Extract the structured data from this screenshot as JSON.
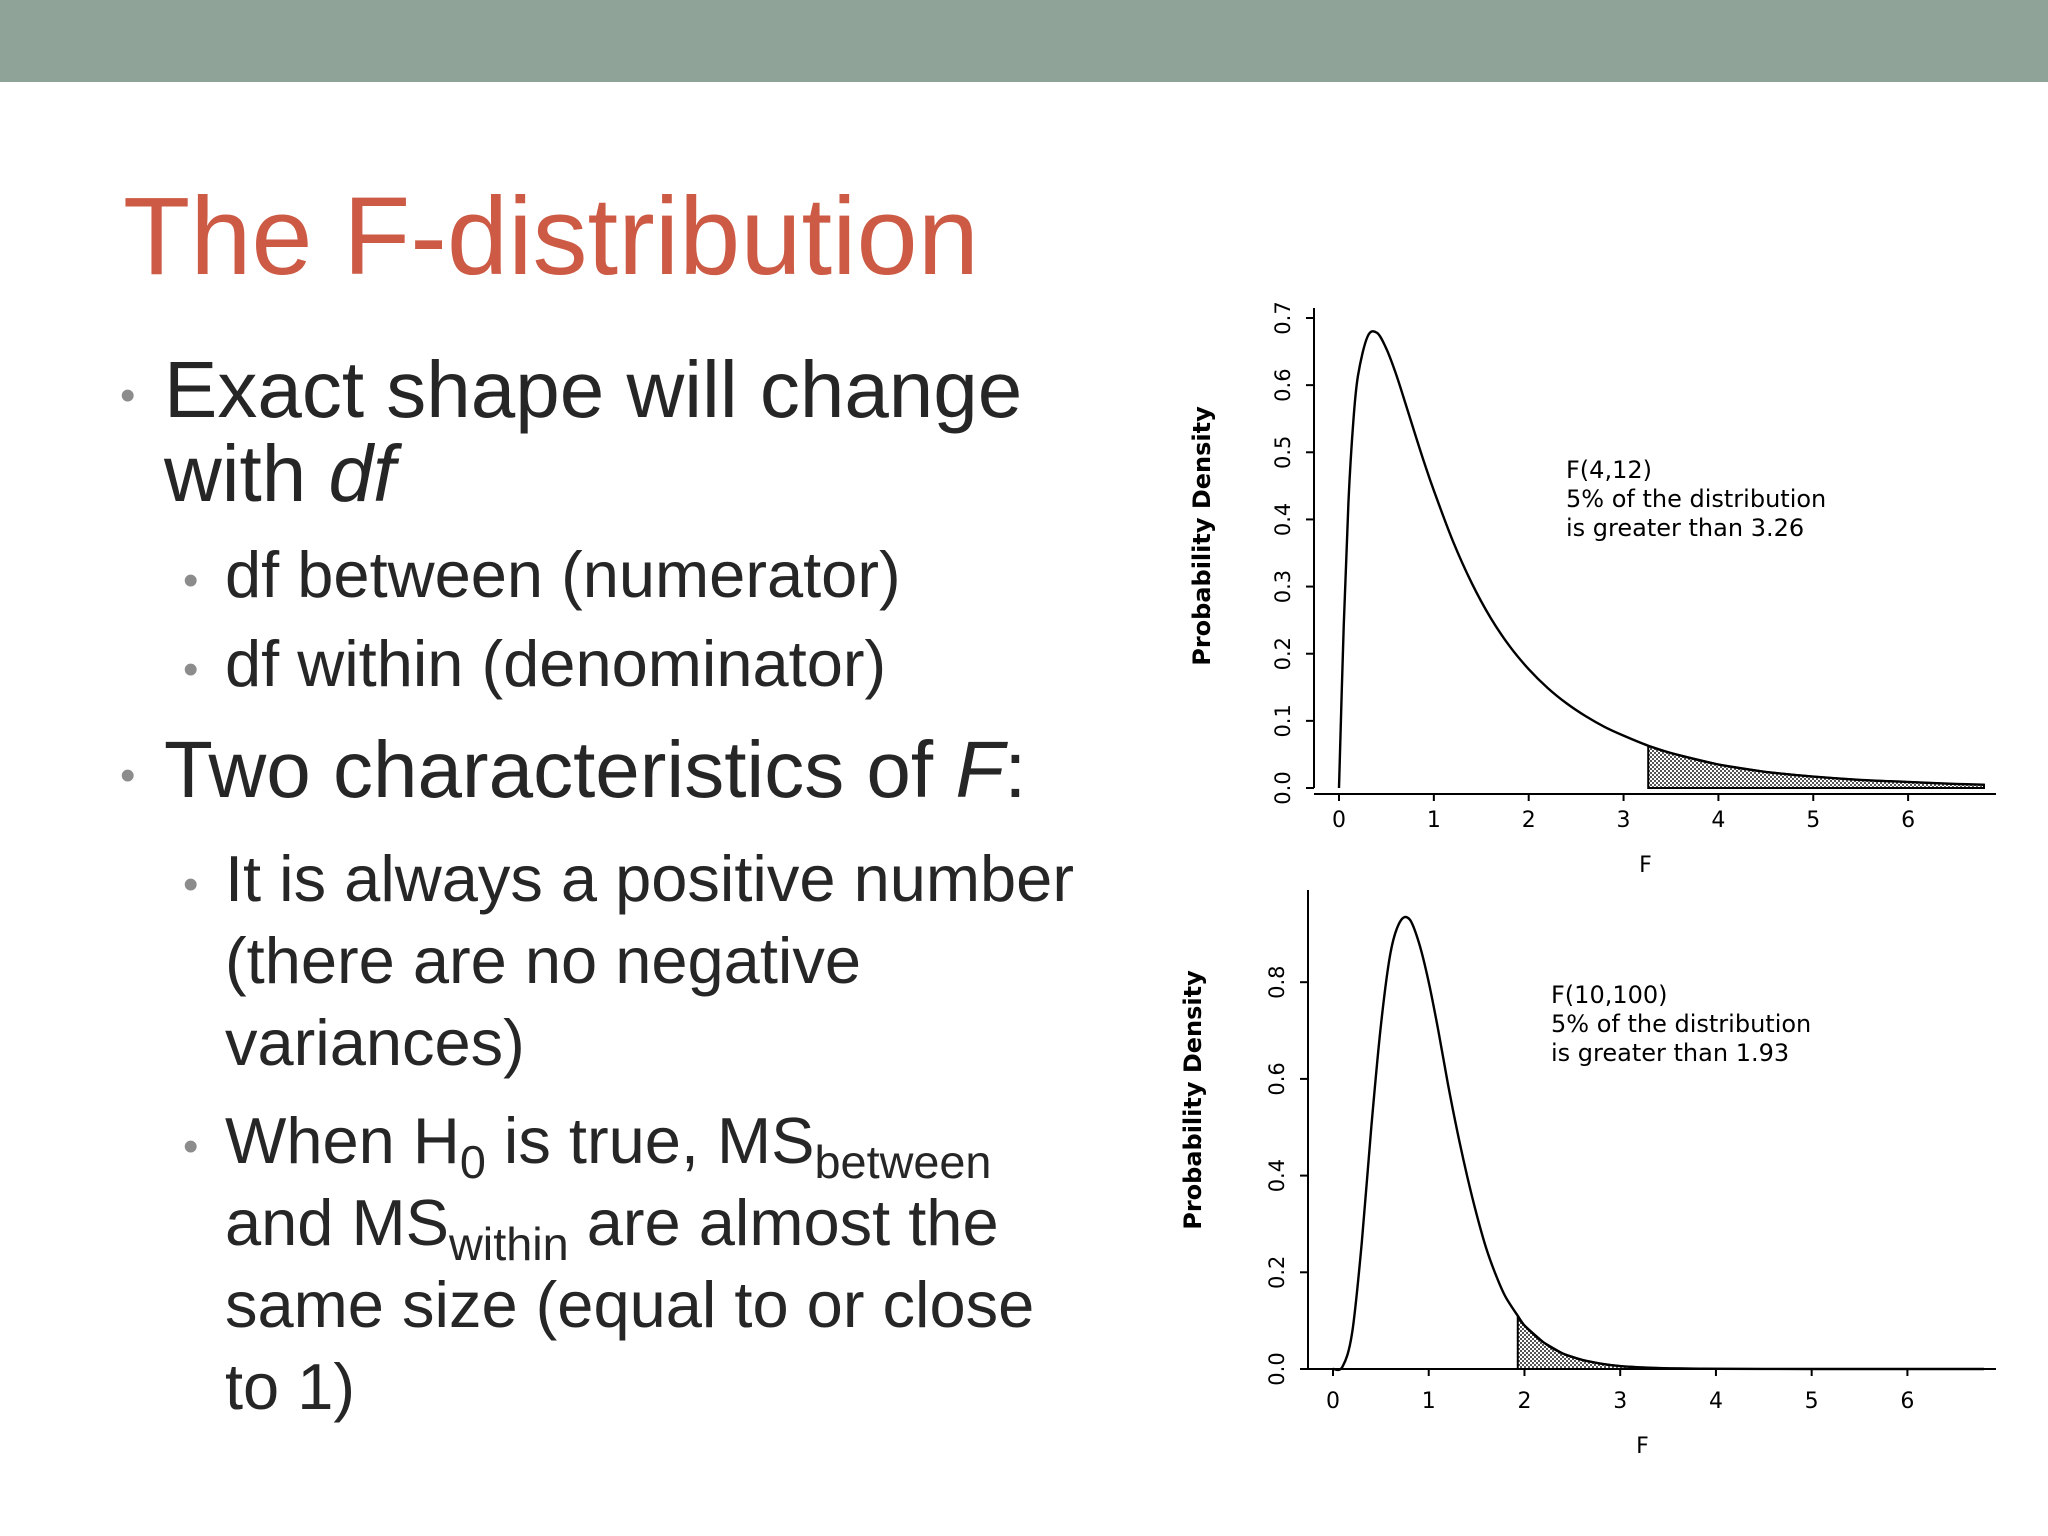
{
  "slide": {
    "title": "The F-distribution",
    "bullets": {
      "b1_text": "Exact shape will change with ",
      "b1_em": "df",
      "b1a": "df between (numerator)",
      "b1b": "df within (denominator)",
      "b2_text": "Two characteristics of ",
      "b2_em": "F",
      "b2_colon": ":",
      "b2a": "It is always a positive number (there are no negative variances)",
      "b2b_1": "When H",
      "b2b_sub0": "0",
      "b2b_2": " is true, MS",
      "b2b_subbetween": "between",
      "b2b_3": " and MS",
      "b2b_subwithin": "within",
      "b2b_4": " are almost the same size (equal to or close to 1)"
    }
  },
  "chart_data": [
    {
      "type": "area",
      "title": "",
      "xlabel": "F",
      "ylabel": "Probability Density",
      "df1": 4,
      "df2": 12,
      "xlim": [
        0,
        6.8
      ],
      "ylim": [
        0,
        0.7
      ],
      "xticks": [
        0,
        1,
        2,
        3,
        4,
        5,
        6
      ],
      "xtick_labels": [
        "0",
        "1",
        "2",
        "3",
        "4",
        "5",
        "6"
      ],
      "yticks": [
        0,
        0.1,
        0.2,
        0.3,
        0.4,
        0.5,
        0.6,
        0.7
      ],
      "ytick_labels": [
        "0.0",
        "0.1",
        "0.2",
        "0.3",
        "0.4",
        "0.5",
        "0.6",
        "0.7"
      ],
      "critical_value": 3.26,
      "series": [
        {
          "x": [
            0,
            0.05,
            0.1,
            0.15,
            0.2,
            0.3,
            0.4,
            0.5,
            0.6,
            0.7,
            0.8,
            0.9,
            1.0,
            1.2,
            1.4,
            1.6,
            1.8,
            2.0,
            2.2,
            2.4,
            2.6,
            2.8,
            3.0,
            3.26,
            3.5,
            4.0,
            4.5,
            5.0,
            5.5,
            6.0,
            6.5,
            6.8
          ],
          "y": [
            0,
            0.242,
            0.427,
            0.544,
            0.614,
            0.672,
            0.678,
            0.654,
            0.617,
            0.573,
            0.528,
            0.484,
            0.443,
            0.368,
            0.305,
            0.253,
            0.211,
            0.177,
            0.149,
            0.126,
            0.107,
            0.091,
            0.078,
            0.063,
            0.052,
            0.035,
            0.024,
            0.017,
            0.012,
            0.009,
            0.006,
            0.005
          ]
        }
      ],
      "annotation": [
        "F(4,12)",
        "5% of the distribution",
        "is greater than 3.26"
      ]
    },
    {
      "type": "area",
      "title": "",
      "xlabel": "F",
      "ylabel": "Probability Density",
      "df1": 10,
      "df2": 100,
      "xlim": [
        0,
        6.8
      ],
      "ylim": [
        0,
        0.97
      ],
      "xticks": [
        0,
        1,
        2,
        3,
        4,
        5,
        6
      ],
      "xtick_labels": [
        "0",
        "1",
        "2",
        "3",
        "4",
        "5",
        "6"
      ],
      "yticks": [
        0,
        0.2,
        0.4,
        0.6,
        0.8
      ],
      "ytick_labels": [
        "0.0",
        "0.2",
        "0.4",
        "0.6",
        "0.8"
      ],
      "critical_value": 1.93,
      "series": [
        {
          "x": [
            0,
            0.1,
            0.2,
            0.3,
            0.4,
            0.5,
            0.6,
            0.7,
            0.8,
            0.9,
            1.0,
            1.1,
            1.2,
            1.3,
            1.4,
            1.5,
            1.6,
            1.7,
            1.8,
            1.93,
            2.0,
            2.2,
            2.4,
            2.6,
            2.8,
            3.0,
            3.2,
            3.5,
            4.0,
            4.5,
            5.0,
            6.0,
            6.8
          ],
          "y": [
            0,
            0.005,
            0.075,
            0.26,
            0.5,
            0.71,
            0.86,
            0.925,
            0.93,
            0.88,
            0.8,
            0.7,
            0.59,
            0.49,
            0.4,
            0.32,
            0.25,
            0.195,
            0.15,
            0.11,
            0.09,
            0.055,
            0.032,
            0.019,
            0.011,
            0.006,
            0.0035,
            0.0015,
            0.0004,
            0.0001,
            0,
            0,
            0
          ]
        }
      ],
      "annotation": [
        "F(10,100)",
        "5% of the distribution",
        "is greater than 1.93"
      ]
    }
  ]
}
